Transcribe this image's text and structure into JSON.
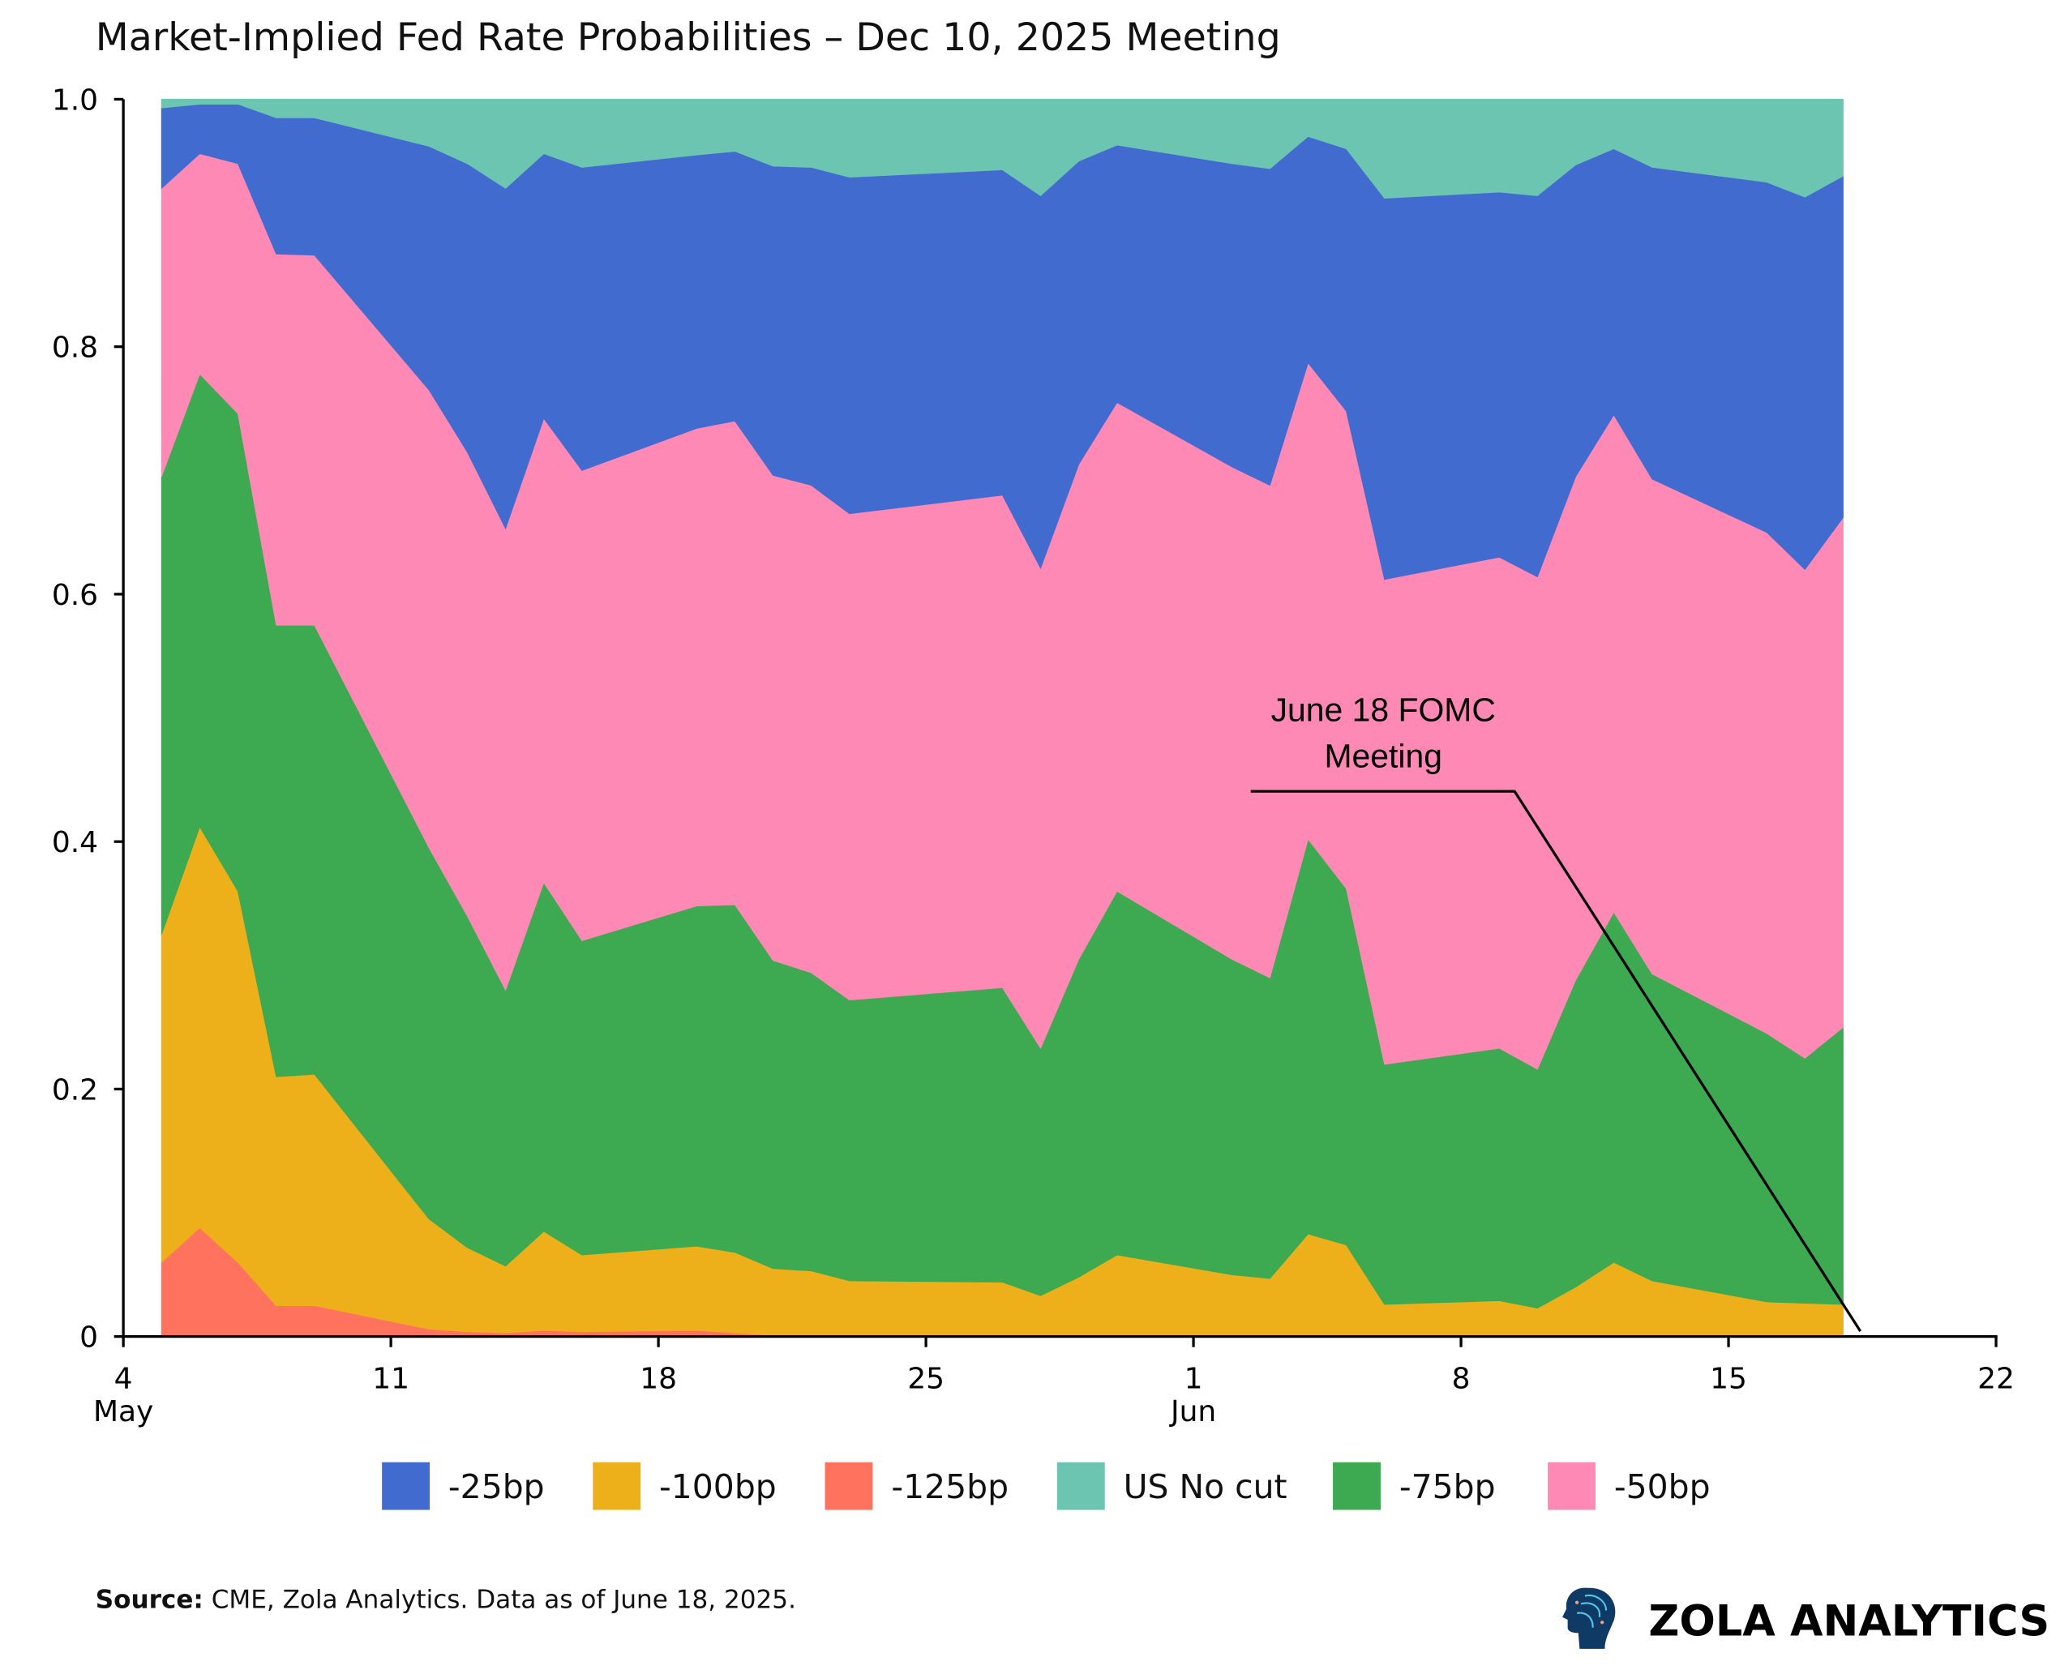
{
  "chart_data": {
    "type": "area",
    "stacked": true,
    "title": "Market-Implied Fed Rate Probabilities – Dec 10, 2025 Meeting",
    "xlabel": "",
    "ylabel": "",
    "ylim": [
      0,
      1
    ],
    "xlim": [
      "2025-05-04",
      "2025-06-22"
    ],
    "grid": false,
    "legend_position": "bottom",
    "y_ticks": [
      "0",
      "0.2",
      "0.4",
      "0.6",
      "0.8",
      "1.0"
    ],
    "x_ticks": [
      {
        "date": "2025-05-04",
        "label": "4",
        "month": "May"
      },
      {
        "date": "2025-05-11",
        "label": "11",
        "month": ""
      },
      {
        "date": "2025-05-18",
        "label": "18",
        "month": ""
      },
      {
        "date": "2025-05-25",
        "label": "25",
        "month": ""
      },
      {
        "date": "2025-06-01",
        "label": "1",
        "month": "Jun"
      },
      {
        "date": "2025-06-08",
        "label": "8",
        "month": ""
      },
      {
        "date": "2025-06-15",
        "label": "15",
        "month": ""
      },
      {
        "date": "2025-06-22",
        "label": "22",
        "month": ""
      }
    ],
    "x": [
      "2025-05-05",
      "2025-05-06",
      "2025-05-07",
      "2025-05-08",
      "2025-05-09",
      "2025-05-12",
      "2025-05-13",
      "2025-05-14",
      "2025-05-15",
      "2025-05-16",
      "2025-05-19",
      "2025-05-20",
      "2025-05-21",
      "2025-05-22",
      "2025-05-23",
      "2025-05-27",
      "2025-05-28",
      "2025-05-29",
      "2025-05-30",
      "2025-06-02",
      "2025-06-03",
      "2025-06-04",
      "2025-06-05",
      "2025-06-06",
      "2025-06-09",
      "2025-06-10",
      "2025-06-11",
      "2025-06-12",
      "2025-06-13",
      "2025-06-16",
      "2025-06-17",
      "2025-06-18"
    ],
    "stack_order_bottom_to_top": [
      "-125bp",
      "-100bp",
      "-75bp",
      "-50bp",
      "-25bp",
      "US No cut"
    ],
    "series": [
      {
        "name": "-125bp",
        "color": "#FF735E",
        "values": [
          0.06,
          0.088,
          0.06,
          0.025,
          0.025,
          0.006,
          0.004,
          0.003,
          0.005,
          0.004,
          0.005,
          0.003,
          0.001,
          0,
          0,
          0,
          0,
          0,
          0,
          0,
          0,
          0,
          0,
          0,
          0,
          0,
          0,
          0,
          0,
          0,
          0,
          0
        ]
      },
      {
        "name": "-100bp",
        "color": "#EDB01A",
        "values": [
          0.265,
          0.324,
          0.3,
          0.185,
          0.187,
          0.089,
          0.068,
          0.054,
          0.08,
          0.062,
          0.068,
          0.065,
          0.054,
          0.053,
          0.045,
          0.044,
          0.033,
          0.048,
          0.066,
          0.05,
          0.047,
          0.083,
          0.074,
          0.026,
          0.029,
          0.023,
          0.04,
          0.06,
          0.045,
          0.028,
          0.027,
          0.026
        ]
      },
      {
        "name": "-75bp",
        "color": "#3DA951",
        "values": [
          0.37,
          0.366,
          0.386,
          0.365,
          0.363,
          0.3,
          0.268,
          0.223,
          0.282,
          0.254,
          0.275,
          0.281,
          0.249,
          0.241,
          0.227,
          0.238,
          0.2,
          0.257,
          0.294,
          0.255,
          0.243,
          0.319,
          0.288,
          0.194,
          0.204,
          0.193,
          0.248,
          0.283,
          0.248,
          0.217,
          0.198,
          0.224
        ]
      },
      {
        "name": "-50bp",
        "color": "#FF89B5",
        "values": [
          0.233,
          0.178,
          0.202,
          0.3,
          0.299,
          0.37,
          0.375,
          0.373,
          0.375,
          0.38,
          0.386,
          0.391,
          0.392,
          0.394,
          0.393,
          0.398,
          0.388,
          0.4,
          0.395,
          0.398,
          0.398,
          0.385,
          0.386,
          0.392,
          0.397,
          0.398,
          0.407,
          0.402,
          0.4,
          0.405,
          0.395,
          0.412
        ]
      },
      {
        "name": "-25bp",
        "color": "#426BD0",
        "values": [
          0.065,
          0.04,
          0.048,
          0.11,
          0.111,
          0.197,
          0.233,
          0.275,
          0.214,
          0.245,
          0.221,
          0.218,
          0.25,
          0.257,
          0.272,
          0.263,
          0.301,
          0.245,
          0.208,
          0.245,
          0.256,
          0.183,
          0.212,
          0.308,
          0.295,
          0.308,
          0.252,
          0.215,
          0.252,
          0.283,
          0.301,
          0.276
        ]
      },
      {
        "name": "US No cut",
        "color": "#6CC5B0",
        "values": [
          0.007,
          0.004,
          0.004,
          0.015,
          0.015,
          0.038,
          0.052,
          0.072,
          0.044,
          0.055,
          0.045,
          0.042,
          0.054,
          0.055,
          0.063,
          0.057,
          0.078,
          0.05,
          0.037,
          0.052,
          0.056,
          0.03,
          0.04,
          0.08,
          0.075,
          0.078,
          0.053,
          0.04,
          0.055,
          0.067,
          0.079,
          0.062
        ]
      }
    ],
    "legend": [
      "-25bp",
      "-100bp",
      "-125bp",
      "US No cut",
      "-75bp",
      "-50bp"
    ],
    "annotation": {
      "text_line1": "June 18 FOMC",
      "text_line2": "Meeting",
      "target_date": "2025-06-18"
    }
  },
  "footer": {
    "source_label": "Source:",
    "source_text": " CME, Zola Analytics. Data as of June 18, 2025.",
    "brand": "ZOLA ANALYTICS"
  }
}
